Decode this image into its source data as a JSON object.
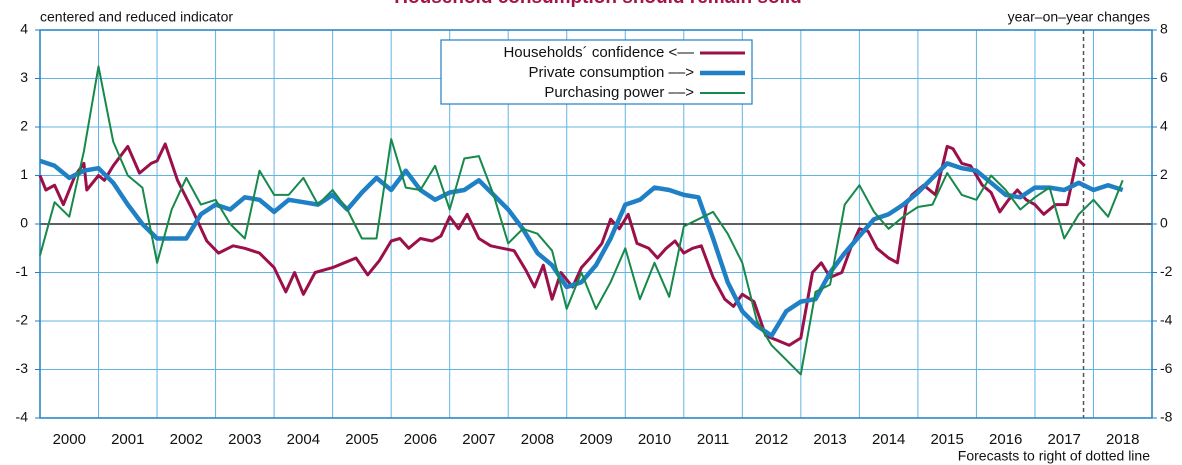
{
  "chart_data": {
    "type": "line",
    "title": "Household consumption should remain solid",
    "y_axis_label": "centered and reduced indicator",
    "y2_axis_label": "year–on–year changes",
    "annotation": "Forecasts to right of dotted line",
    "forecast_x": 2017.83,
    "xlim": [
      2000,
      2019
    ],
    "xticks": [
      2000,
      2001,
      2002,
      2003,
      2004,
      2005,
      2006,
      2007,
      2008,
      2009,
      2010,
      2011,
      2012,
      2013,
      2014,
      2015,
      2016,
      2017,
      2018
    ],
    "ylim": [
      -4,
      4
    ],
    "yticks": [
      -4,
      -3,
      -2,
      -1,
      0,
      1,
      2,
      3,
      4
    ],
    "y2lim": [
      -8,
      8
    ],
    "y2ticks": [
      -8,
      -6,
      -4,
      -2,
      0,
      2,
      4,
      6,
      8
    ],
    "grid": true,
    "series": [
      {
        "name": "Households´ confidence <––",
        "color": "#9b1048",
        "width": 3,
        "axis": "y",
        "x": [
          2000.0,
          2000.1,
          2000.25,
          2000.4,
          2000.6,
          2000.75,
          2000.8,
          2001.0,
          2001.1,
          2001.25,
          2001.5,
          2001.7,
          2001.9,
          2002.0,
          2002.14,
          2002.35,
          2002.6,
          2002.85,
          2003.05,
          2003.3,
          2003.5,
          2003.75,
          2004.0,
          2004.2,
          2004.35,
          2004.5,
          2004.7,
          2005.0,
          2005.2,
          2005.4,
          2005.6,
          2005.8,
          2006.0,
          2006.15,
          2006.3,
          2006.5,
          2006.7,
          2006.85,
          2007.0,
          2007.15,
          2007.3,
          2007.5,
          2007.7,
          2007.9,
          2008.1,
          2008.3,
          2008.45,
          2008.6,
          2008.75,
          2008.9,
          2009.1,
          2009.25,
          2009.4,
          2009.6,
          2009.75,
          2009.9,
          2010.05,
          2010.2,
          2010.4,
          2010.55,
          2010.7,
          2010.85,
          2011.0,
          2011.15,
          2011.3,
          2011.5,
          2011.7,
          2011.85,
          2012.0,
          2012.2,
          2012.4,
          2012.6,
          2012.8,
          2013.0,
          2013.2,
          2013.35,
          2013.5,
          2013.7,
          2013.85,
          2014.0,
          2014.15,
          2014.3,
          2014.5,
          2014.65,
          2014.8,
          2014.9,
          2015.1,
          2015.3,
          2015.5,
          2015.6,
          2015.75,
          2015.9,
          2016.1,
          2016.25,
          2016.4,
          2016.55,
          2016.7,
          2016.85,
          2017.0,
          2017.15,
          2017.35,
          2017.55,
          2017.72,
          2017.85
        ],
        "values": [
          1.0,
          0.7,
          0.8,
          0.4,
          1.0,
          1.25,
          0.7,
          1.0,
          0.9,
          1.2,
          1.6,
          1.05,
          1.25,
          1.3,
          1.65,
          0.9,
          0.3,
          -0.35,
          -0.6,
          -0.45,
          -0.5,
          -0.6,
          -0.9,
          -1.4,
          -1.0,
          -1.45,
          -1.0,
          -0.9,
          -0.8,
          -0.7,
          -1.05,
          -0.75,
          -0.35,
          -0.3,
          -0.5,
          -0.3,
          -0.35,
          -0.25,
          0.15,
          -0.1,
          0.2,
          -0.3,
          -0.45,
          -0.5,
          -0.55,
          -0.95,
          -1.3,
          -0.85,
          -1.55,
          -1.0,
          -1.3,
          -0.9,
          -0.7,
          -0.4,
          0.1,
          -0.1,
          0.2,
          -0.4,
          -0.5,
          -0.7,
          -0.5,
          -0.35,
          -0.6,
          -0.5,
          -0.45,
          -1.1,
          -1.55,
          -1.7,
          -1.45,
          -1.6,
          -2.3,
          -2.4,
          -2.5,
          -2.35,
          -1.0,
          -0.8,
          -1.1,
          -1.0,
          -0.5,
          -0.1,
          -0.15,
          -0.5,
          -0.7,
          -0.8,
          0.4,
          0.6,
          0.8,
          0.6,
          1.6,
          1.55,
          1.25,
          1.2,
          0.8,
          0.65,
          0.25,
          0.5,
          0.7,
          0.5,
          0.4,
          0.2,
          0.4,
          0.4,
          1.35,
          1.2
        ]
      },
      {
        "name": "Private consumption ––>",
        "color": "#1f80c6",
        "width": 4.5,
        "axis": "y2",
        "x": [
          2000.0,
          2000.25,
          2000.5,
          2000.75,
          2001.0,
          2001.25,
          2001.5,
          2001.75,
          2002.0,
          2002.25,
          2002.5,
          2002.75,
          2003.0,
          2003.25,
          2003.5,
          2003.75,
          2004.0,
          2004.25,
          2004.5,
          2004.75,
          2005.0,
          2005.25,
          2005.5,
          2005.75,
          2006.0,
          2006.25,
          2006.5,
          2006.75,
          2007.0,
          2007.25,
          2007.5,
          2007.75,
          2008.0,
          2008.25,
          2008.5,
          2008.75,
          2009.0,
          2009.25,
          2009.5,
          2009.75,
          2010.0,
          2010.25,
          2010.5,
          2010.75,
          2011.0,
          2011.25,
          2011.5,
          2011.75,
          2012.0,
          2012.25,
          2012.5,
          2012.75,
          2013.0,
          2013.25,
          2013.5,
          2013.75,
          2014.0,
          2014.25,
          2014.5,
          2014.75,
          2015.0,
          2015.25,
          2015.5,
          2015.75,
          2016.0,
          2016.25,
          2016.5,
          2016.75,
          2017.0,
          2017.25,
          2017.5,
          2017.75,
          2018.0,
          2018.25,
          2018.5
        ],
        "values": [
          2.6,
          2.4,
          1.9,
          2.2,
          2.3,
          1.7,
          0.8,
          0,
          -0.6,
          -0.6,
          -0.6,
          0.4,
          0.8,
          0.6,
          1.1,
          1.0,
          0.5,
          1.0,
          0.9,
          0.8,
          1.2,
          0.6,
          1.3,
          1.9,
          1.4,
          2.2,
          1.4,
          1.0,
          1.3,
          1.4,
          1.8,
          1.2,
          0.6,
          -0.2,
          -1.2,
          -1.7,
          -2.6,
          -2.4,
          -1.7,
          -0.6,
          0.8,
          1.0,
          1.5,
          1.4,
          1.2,
          1.1,
          -0.6,
          -2.4,
          -3.6,
          -4.2,
          -4.6,
          -3.6,
          -3.2,
          -3.1,
          -2.0,
          -1.2,
          -0.5,
          0.2,
          0.4,
          0.8,
          1.3,
          1.9,
          2.5,
          2.3,
          2.2,
          1.7,
          1.2,
          1.1,
          1.5,
          1.5,
          1.4,
          1.7,
          1.4,
          1.6,
          1.4
        ]
      },
      {
        "name": "Purchasing power ––>",
        "color": "#17894a",
        "width": 2,
        "axis": "y2",
        "x": [
          2000.0,
          2000.25,
          2000.5,
          2000.75,
          2001.0,
          2001.25,
          2001.5,
          2001.75,
          2002.0,
          2002.25,
          2002.5,
          2002.75,
          2003.0,
          2003.25,
          2003.5,
          2003.75,
          2004.0,
          2004.25,
          2004.5,
          2004.75,
          2005.0,
          2005.25,
          2005.5,
          2005.75,
          2006.0,
          2006.25,
          2006.5,
          2006.75,
          2007.0,
          2007.25,
          2007.5,
          2007.75,
          2008.0,
          2008.25,
          2008.5,
          2008.75,
          2009.0,
          2009.25,
          2009.5,
          2009.75,
          2010.0,
          2010.25,
          2010.5,
          2010.75,
          2011.0,
          2011.25,
          2011.5,
          2011.75,
          2012.0,
          2012.25,
          2012.5,
          2012.75,
          2013.0,
          2013.25,
          2013.5,
          2013.75,
          2014.0,
          2014.25,
          2014.5,
          2014.75,
          2015.0,
          2015.25,
          2015.5,
          2015.75,
          2016.0,
          2016.25,
          2016.5,
          2016.75,
          2017.0,
          2017.25,
          2017.5,
          2017.75,
          2018.0,
          2018.25,
          2018.5
        ],
        "values": [
          -1.3,
          0.9,
          0.3,
          3.0,
          6.5,
          3.4,
          2.0,
          1.5,
          -1.6,
          0.6,
          1.9,
          0.8,
          1.0,
          0,
          -0.6,
          2.2,
          1.2,
          1.2,
          1.9,
          0.8,
          1.4,
          0.6,
          -0.6,
          -0.6,
          3.5,
          1.5,
          1.4,
          2.4,
          0.6,
          2.7,
          2.8,
          1.2,
          -0.8,
          -0.2,
          -0.4,
          -1.1,
          -3.5,
          -2.0,
          -3.5,
          -2.4,
          -1.0,
          -3.1,
          -1.6,
          -3.0,
          -0.1,
          0.2,
          0.5,
          -0.4,
          -1.6,
          -4.0,
          -5.0,
          -5.6,
          -6.2,
          -2.8,
          -2.5,
          0.8,
          1.6,
          0.5,
          -0.2,
          0.3,
          0.7,
          0.8,
          2.1,
          1.2,
          1.0,
          2.0,
          1.4,
          0.6,
          1.1,
          1.5,
          -0.6,
          0.4,
          1.0,
          0.3,
          1.8
        ]
      }
    ]
  }
}
